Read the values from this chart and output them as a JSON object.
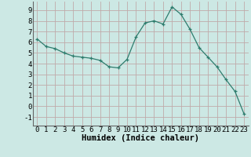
{
  "x": [
    0,
    1,
    2,
    3,
    4,
    5,
    6,
    7,
    8,
    9,
    10,
    11,
    12,
    13,
    14,
    15,
    16,
    17,
    18,
    19,
    20,
    21,
    22,
    23
  ],
  "y": [
    6.3,
    5.6,
    5.4,
    5.0,
    4.7,
    4.6,
    4.5,
    4.3,
    3.7,
    3.6,
    4.4,
    6.5,
    7.8,
    8.0,
    7.7,
    9.3,
    8.6,
    7.2,
    5.5,
    4.6,
    3.7,
    2.5,
    1.4,
    -0.7
  ],
  "line_color": "#2e7d6e",
  "marker": "+",
  "marker_size": 3.5,
  "bg_color": "#cce8e4",
  "grid_color": "#c0aaaa",
  "xlabel": "Humidex (Indice chaleur)",
  "xlim": [
    -0.5,
    23.5
  ],
  "ylim": [
    -1.8,
    9.8
  ],
  "yticks": [
    -1,
    0,
    1,
    2,
    3,
    4,
    5,
    6,
    7,
    8,
    9
  ],
  "xticks": [
    0,
    1,
    2,
    3,
    4,
    5,
    6,
    7,
    8,
    9,
    10,
    11,
    12,
    13,
    14,
    15,
    16,
    17,
    18,
    19,
    20,
    21,
    22,
    23
  ],
  "tick_fontsize": 6.5,
  "label_fontsize": 7.5
}
